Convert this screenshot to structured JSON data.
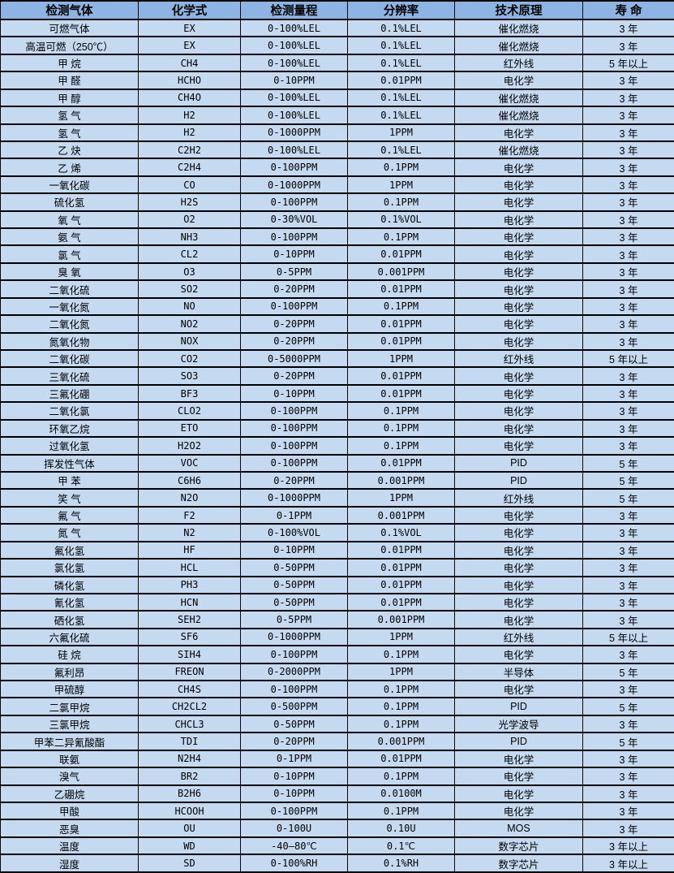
{
  "colors": {
    "header_bg": "#8DB4E2",
    "row_bg": "#C5D9F1",
    "border": "#000000",
    "text": "#000000"
  },
  "table": {
    "columns": [
      {
        "key": "gas",
        "label": "检测气体"
      },
      {
        "key": "formula",
        "label": "化学式"
      },
      {
        "key": "range",
        "label": "检测量程"
      },
      {
        "key": "resolution",
        "label": "分辨率"
      },
      {
        "key": "principle",
        "label": "技术原理"
      },
      {
        "key": "lifespan",
        "label": "寿 命"
      }
    ],
    "rows": [
      {
        "gas": "可燃气体",
        "formula": "EX",
        "range": "0-100%LEL",
        "resolution": "0.1%LEL",
        "principle": "催化燃烧",
        "lifespan": "3 年"
      },
      {
        "gas": "高温可燃（250℃）",
        "formula": "EX",
        "range": "0-100%LEL",
        "resolution": "0.1%LEL",
        "principle": "催化燃烧",
        "lifespan": "3 年"
      },
      {
        "gas": "甲 烷",
        "formula": "CH4",
        "range": "0-100%LEL",
        "resolution": "0.1%LEL",
        "principle": "红外线",
        "lifespan": "5 年以上"
      },
      {
        "gas": "甲 醛",
        "formula": "HCHO",
        "range": "0-10PPM",
        "resolution": "0.01PPM",
        "principle": "电化学",
        "lifespan": "3 年"
      },
      {
        "gas": "甲 醇",
        "formula": "CH4O",
        "range": "0-100%LEL",
        "resolution": "0.1%LEL",
        "principle": "催化燃烧",
        "lifespan": "3 年"
      },
      {
        "gas": "氢 气",
        "formula": "H2",
        "range": "0-100%LEL",
        "resolution": "0.1%LEL",
        "principle": "催化燃烧",
        "lifespan": "3 年"
      },
      {
        "gas": "氢 气",
        "formula": "H2",
        "range": "0-1000PPM",
        "resolution": "1PPM",
        "principle": "电化学",
        "lifespan": "3 年"
      },
      {
        "gas": "乙 炔",
        "formula": "C2H2",
        "range": "0-100%LEL",
        "resolution": "0.1%LEL",
        "principle": "催化燃烧",
        "lifespan": "3 年"
      },
      {
        "gas": "乙 烯",
        "formula": "C2H4",
        "range": "0-100PPM",
        "resolution": "0.1PPM",
        "principle": "电化学",
        "lifespan": "3 年"
      },
      {
        "gas": "一氧化碳",
        "formula": "CO",
        "range": "0-1000PPM",
        "resolution": "1PPM",
        "principle": "电化学",
        "lifespan": "3 年"
      },
      {
        "gas": "硫化氢",
        "formula": "H2S",
        "range": "0-100PPM",
        "resolution": "0.1PPM",
        "principle": "电化学",
        "lifespan": "3 年"
      },
      {
        "gas": "氧 气",
        "formula": "O2",
        "range": "0-30%VOL",
        "resolution": "0.1%VOL",
        "principle": "电化学",
        "lifespan": "3 年"
      },
      {
        "gas": "氨 气",
        "formula": "NH3",
        "range": "0-100PPM",
        "resolution": "0.1PPM",
        "principle": "电化学",
        "lifespan": "3 年"
      },
      {
        "gas": "氯 气",
        "formula": "CL2",
        "range": "0-10PPM",
        "resolution": "0.01PPM",
        "principle": "电化学",
        "lifespan": "3 年"
      },
      {
        "gas": "臭 氧",
        "formula": "O3",
        "range": "0-5PPM",
        "resolution": "0.001PPM",
        "principle": "电化学",
        "lifespan": "3 年"
      },
      {
        "gas": "二氧化硫",
        "formula": "SO2",
        "range": "0-20PPM",
        "resolution": "0.01PPM",
        "principle": "电化学",
        "lifespan": "3 年"
      },
      {
        "gas": "一氧化氮",
        "formula": "NO",
        "range": "0-100PPM",
        "resolution": "0.1PPM",
        "principle": "电化学",
        "lifespan": "3 年"
      },
      {
        "gas": "二氧化氮",
        "formula": "NO2",
        "range": "0-20PPM",
        "resolution": "0.01PPM",
        "principle": "电化学",
        "lifespan": "3 年"
      },
      {
        "gas": "氮氧化物",
        "formula": "NOX",
        "range": "0-20PPM",
        "resolution": "0.01PPM",
        "principle": "电化学",
        "lifespan": "3 年"
      },
      {
        "gas": "二氧化碳",
        "formula": "CO2",
        "range": "0-5000PPM",
        "resolution": "1PPM",
        "principle": "红外线",
        "lifespan": "5 年以上"
      },
      {
        "gas": "三氧化硫",
        "formula": "SO3",
        "range": "0-20PPM",
        "resolution": "0.01PPM",
        "principle": "电化学",
        "lifespan": "3 年"
      },
      {
        "gas": "三氟化硼",
        "formula": "BF3",
        "range": "0-10PPM",
        "resolution": "0.01PPM",
        "principle": "电化学",
        "lifespan": "3 年"
      },
      {
        "gas": "二氧化氯",
        "formula": "CLO2",
        "range": "0-100PPM",
        "resolution": "0.1PPM",
        "principle": "电化学",
        "lifespan": "3 年"
      },
      {
        "gas": "环氧乙烷",
        "formula": "ETO",
        "range": "0-100PPM",
        "resolution": "0.1PPM",
        "principle": "电化学",
        "lifespan": "3 年"
      },
      {
        "gas": "过氧化氢",
        "formula": "H2O2",
        "range": "0-100PPM",
        "resolution": "0.1PPM",
        "principle": "电化学",
        "lifespan": "3 年"
      },
      {
        "gas": "挥发性气体",
        "formula": "VOC",
        "range": "0-100PPM",
        "resolution": "0.01PPM",
        "principle": "PID",
        "lifespan": "5 年"
      },
      {
        "gas": "甲 苯",
        "formula": "C6H6",
        "range": "0-20PPM",
        "resolution": "0.001PPM",
        "principle": "PID",
        "lifespan": "5 年"
      },
      {
        "gas": "笑 气",
        "formula": "N2O",
        "range": "0-1000PPM",
        "resolution": "1PPM",
        "principle": "红外线",
        "lifespan": "5 年"
      },
      {
        "gas": "氟 气",
        "formula": "F2",
        "range": "0-1PPM",
        "resolution": "0.001PPM",
        "principle": "电化学",
        "lifespan": "3 年"
      },
      {
        "gas": "氮 气",
        "formula": "N2",
        "range": "0-100%VOL",
        "resolution": "0.1%VOL",
        "principle": "电化学",
        "lifespan": "3 年"
      },
      {
        "gas": "氟化氢",
        "formula": "HF",
        "range": "0-10PPM",
        "resolution": "0.01PPM",
        "principle": "电化学",
        "lifespan": "3 年"
      },
      {
        "gas": "氯化氢",
        "formula": "HCL",
        "range": "0-50PPM",
        "resolution": "0.01PPM",
        "principle": "电化学",
        "lifespan": "3 年"
      },
      {
        "gas": "磷化氢",
        "formula": "PH3",
        "range": "0-50PPM",
        "resolution": "0.01PPM",
        "principle": "电化学",
        "lifespan": "3 年"
      },
      {
        "gas": "氰化氢",
        "formula": "HCN",
        "range": "0-50PPM",
        "resolution": "0.01PPM",
        "principle": "电化学",
        "lifespan": "3 年"
      },
      {
        "gas": "硒化氢",
        "formula": "SEH2",
        "range": "0-5PPM",
        "resolution": "0.001PPM",
        "principle": "电化学",
        "lifespan": "3 年"
      },
      {
        "gas": "六氟化硫",
        "formula": "SF6",
        "range": "0-1000PPM",
        "resolution": "1PPM",
        "principle": "红外线",
        "lifespan": "5 年以上"
      },
      {
        "gas": "硅 烷",
        "formula": "SIH4",
        "range": "0-100PPM",
        "resolution": "0.1PPM",
        "principle": "电化学",
        "lifespan": "3 年"
      },
      {
        "gas": "氟利昂",
        "formula": "FREON",
        "range": "0-2000PPM",
        "resolution": "1PPM",
        "principle": "半导体",
        "lifespan": "5 年"
      },
      {
        "gas": "甲硫醇",
        "formula": "CH4S",
        "range": "0-100PPM",
        "resolution": "0.1PPM",
        "principle": "电化学",
        "lifespan": "3 年"
      },
      {
        "gas": "二氯甲烷",
        "formula": "CH2CL2",
        "range": "0-500PPM",
        "resolution": "0.1PPM",
        "principle": "PID",
        "lifespan": "5 年"
      },
      {
        "gas": "三氯甲烷",
        "formula": "CHCL3",
        "range": "0-50PPM",
        "resolution": "0.1PPM",
        "principle": "光学波导",
        "lifespan": "3 年"
      },
      {
        "gas": "甲苯二异氰酸酯",
        "formula": "TDI",
        "range": "0-20PPM",
        "resolution": "0.001PPM",
        "principle": "PID",
        "lifespan": "5 年"
      },
      {
        "gas": "联氨",
        "formula": "N2H4",
        "range": "0-1PPM",
        "resolution": "0.01PPM",
        "principle": "电化学",
        "lifespan": "3 年"
      },
      {
        "gas": "溴气",
        "formula": "BR2",
        "range": "0-10PPM",
        "resolution": "0.1PPM",
        "principle": "电化学",
        "lifespan": "3 年"
      },
      {
        "gas": "乙硼烷",
        "formula": "B2H6",
        "range": "0-10PPM",
        "resolution": "0.0100M",
        "principle": "电化学",
        "lifespan": "3 年"
      },
      {
        "gas": "甲酸",
        "formula": "HCOOH",
        "range": "0-100PPM",
        "resolution": "0.1PPM",
        "principle": "电化学",
        "lifespan": "3 年"
      },
      {
        "gas": "恶臭",
        "formula": "OU",
        "range": "0-100U",
        "resolution": "0.10U",
        "principle": "MOS",
        "lifespan": "3 年"
      },
      {
        "gas": "温度",
        "formula": "WD",
        "range": "-40—80℃",
        "resolution": "0.1℃",
        "principle": "数字芯片",
        "lifespan": "3 年以上"
      },
      {
        "gas": "湿度",
        "formula": "SD",
        "range": "0-100%RH",
        "resolution": "0.1%RH",
        "principle": "数字芯片",
        "lifespan": "3 年以上"
      }
    ]
  }
}
